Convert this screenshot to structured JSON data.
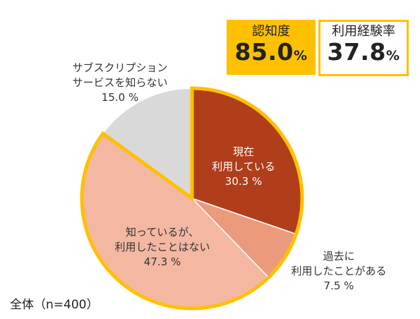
{
  "chart_data": {
    "type": "pie",
    "start_angle_deg": 0,
    "direction": "clockwise",
    "slices": [
      {
        "label_lines": [
          "現在",
          "利用している"
        ],
        "value": 30.3,
        "value_text": "30.3 %",
        "color": "#b03e1a",
        "label_color": "#ffffff"
      },
      {
        "label_lines": [
          "過去に",
          "利用したことがある"
        ],
        "value": 7.5,
        "value_text": "7.5 %",
        "color": "#ec9a7c",
        "label_color": "#333333"
      },
      {
        "label_lines": [
          "知っているが、",
          "利用したことはない"
        ],
        "value": 47.3,
        "value_text": "47.3 %",
        "color": "#f4b8a2",
        "label_color": "#333333"
      },
      {
        "label_lines": [
          "サブスクリプション",
          "サービスを知らない"
        ],
        "value": 15.0,
        "value_text": "15.0 %",
        "color": "#d9d9d9",
        "label_color": "#333333"
      }
    ],
    "highlight_outline_color": "#ffc000",
    "highlight_outline_slices": 3
  },
  "kpis": {
    "awareness": {
      "title": "認知度",
      "value": "85.0",
      "unit": "%"
    },
    "experience": {
      "title": "利用経験率",
      "value": "37.8",
      "unit": "%"
    }
  },
  "footnote": "全体（n=400）"
}
